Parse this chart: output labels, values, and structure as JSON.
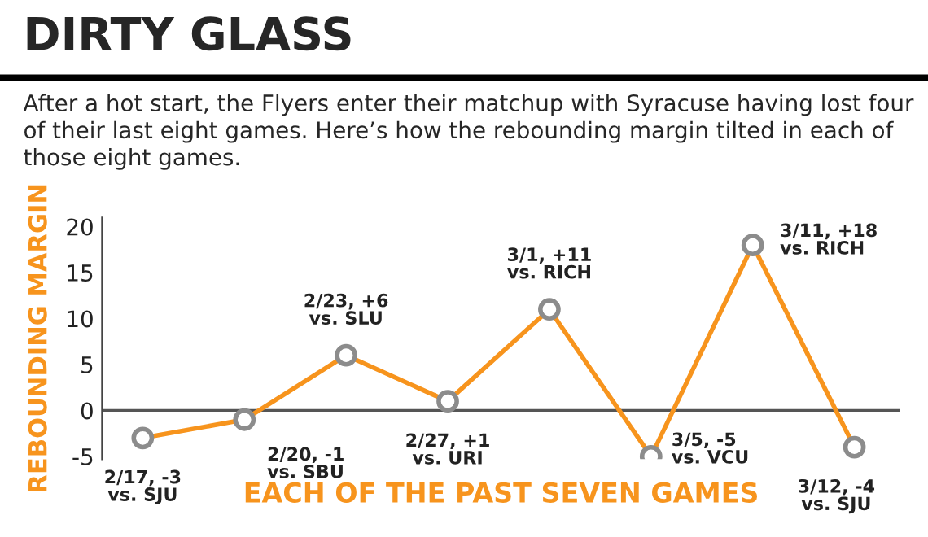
{
  "chart_data": {
    "type": "line",
    "title": "DIRTY GLASS",
    "subtitle": "After a hot start, the Flyers enter their matchup with Syracuse having lost four of their last eight games. Here’s how the rebounding margin tilted in each of those eight games.",
    "xlabel": "EACH OF THE PAST SEVEN GAMES",
    "ylabel": "REBOUNDING MARGIN",
    "categories": [
      null,
      null,
      null,
      null,
      null,
      null,
      null,
      null
    ],
    "series": [
      {
        "color": "#f7941d",
        "values": [
          -3,
          -1,
          6,
          1,
          11,
          -5,
          18,
          -4
        ],
        "value_labels": [
          "2/17, -3\nvs. SJU",
          "2/20, -1\nvs. SBU",
          "2/23, +6\nvs. SLU",
          "2/27, +1\nvs. URI",
          "3/1, +11\nvs. RICH",
          "3/5, -5\nvs. VCU",
          "3/11, +18\nvs. RICH",
          "3/12, -4\nvs. SJU"
        ]
      }
    ],
    "ylim": [
      -5.3,
      21
    ],
    "yticks": [
      -5,
      0,
      5,
      10,
      15,
      20
    ],
    "ref_lines": [
      {
        "axis": "y",
        "value": 0,
        "color": "#555555"
      }
    ],
    "marker": "circle",
    "line_style": "solid",
    "grid": false,
    "legend": false,
    "tick_labels": "y"
  }
}
